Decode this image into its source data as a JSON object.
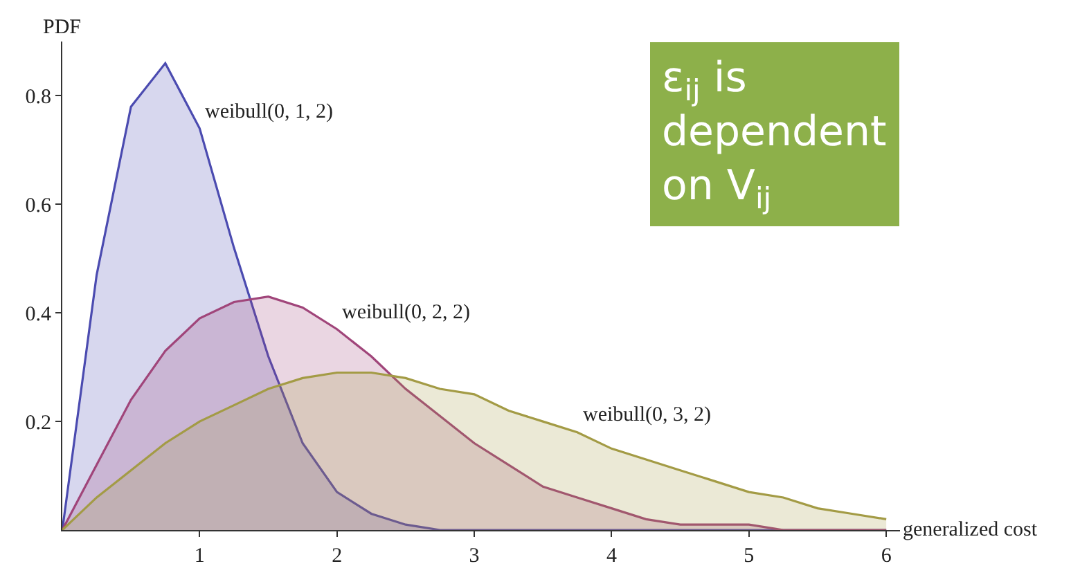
{
  "chart_data": {
    "type": "area",
    "xlabel": "generalized cost",
    "ylabel": "PDF",
    "xlim": [
      0,
      6.1
    ],
    "ylim": [
      0,
      0.9
    ],
    "xticks": [
      1,
      2,
      3,
      4,
      5,
      6
    ],
    "yticks": [
      0.2,
      0.4,
      0.6,
      0.8
    ],
    "legend": false,
    "x": [
      0,
      0.25,
      0.5,
      0.75,
      1,
      1.25,
      1.5,
      1.75,
      2,
      2.25,
      2.5,
      2.75,
      3,
      3.25,
      3.5,
      3.75,
      4,
      4.25,
      4.5,
      4.75,
      5,
      5.25,
      5.5,
      5.75,
      6
    ],
    "series": [
      {
        "name": "weibull(0, 1, 2)",
        "color": "#4b4bb0",
        "values": [
          0,
          0.47,
          0.78,
          0.86,
          0.74,
          0.52,
          0.32,
          0.16,
          0.07,
          0.03,
          0.01,
          0,
          0,
          0,
          0,
          0,
          0,
          0,
          0,
          0,
          0,
          0,
          0,
          0,
          0
        ]
      },
      {
        "name": "weibull(0, 2, 2)",
        "color": "#a0457a",
        "values": [
          0,
          0.12,
          0.24,
          0.33,
          0.39,
          0.42,
          0.43,
          0.41,
          0.37,
          0.32,
          0.26,
          0.21,
          0.16,
          0.12,
          0.08,
          0.06,
          0.04,
          0.02,
          0.01,
          0.01,
          0.01,
          0,
          0,
          0,
          0
        ]
      },
      {
        "name": "weibull(0, 3, 2)",
        "color": "#a39b45",
        "values": [
          0,
          0.06,
          0.11,
          0.16,
          0.2,
          0.23,
          0.26,
          0.28,
          0.29,
          0.29,
          0.28,
          0.26,
          0.25,
          0.22,
          0.2,
          0.18,
          0.15,
          0.13,
          0.11,
          0.09,
          0.07,
          0.06,
          0.04,
          0.03,
          0.02
        ]
      }
    ],
    "annotations": [
      "ε$_{ij}$ is dependent on V$_{ij}$"
    ]
  }
}
